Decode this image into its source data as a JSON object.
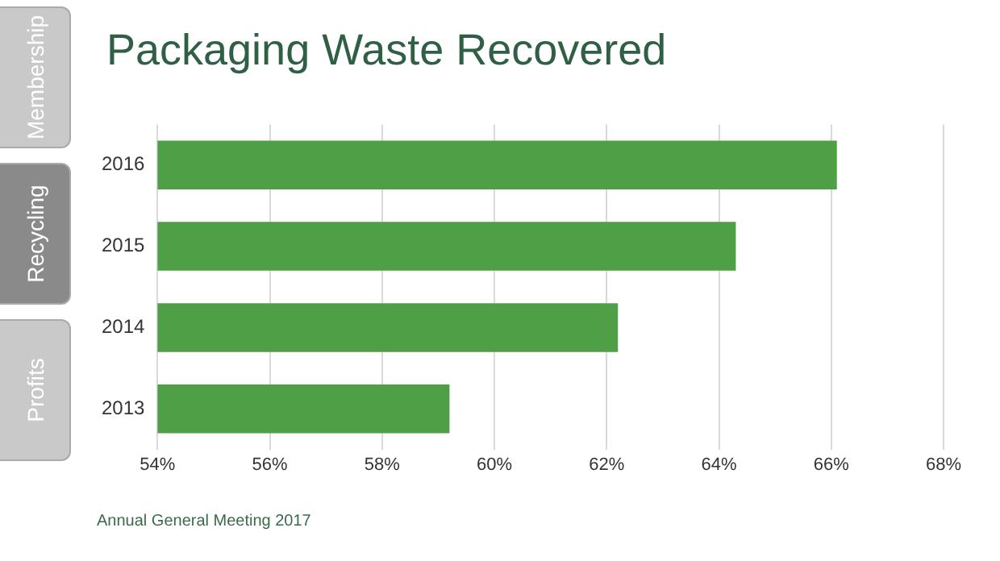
{
  "chart_data": {
    "type": "bar",
    "orientation": "horizontal",
    "title": "Packaging Waste Recovered",
    "categories": [
      "2016",
      "2015",
      "2014",
      "2013"
    ],
    "values": [
      66.1,
      64.3,
      62.2,
      59.2
    ],
    "color": "#4e9f45",
    "xlim": [
      54,
      68
    ],
    "xticks": [
      {
        "value": 54,
        "label": "54%"
      },
      {
        "value": 56,
        "label": "56%"
      },
      {
        "value": 58,
        "label": "58%"
      },
      {
        "value": 60,
        "label": "60%"
      },
      {
        "value": 62,
        "label": "62%"
      },
      {
        "value": 64,
        "label": "64%"
      },
      {
        "value": 66,
        "label": "66%"
      },
      {
        "value": 68,
        "label": "68%"
      }
    ],
    "grid": "x",
    "legend": false,
    "annotations": [
      "Membership",
      "Recycling",
      "Profits",
      "Annual General Meeting 2017"
    ]
  }
}
